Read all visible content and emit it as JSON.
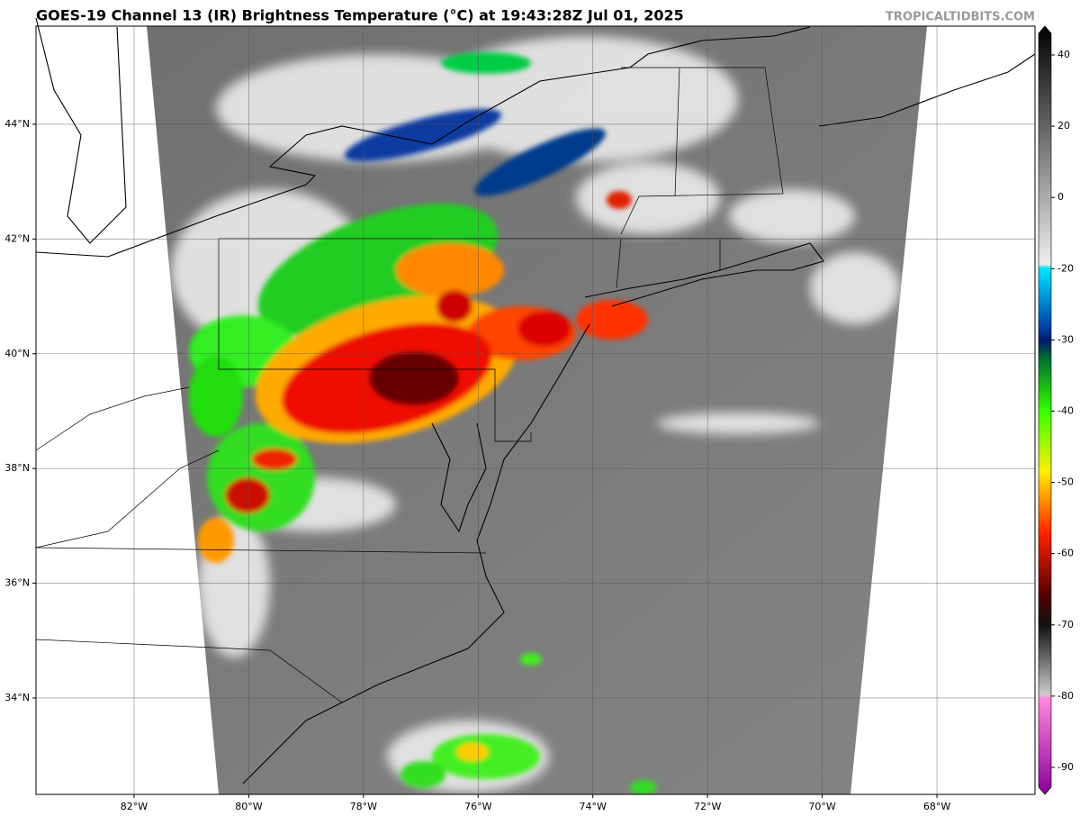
{
  "title": "GOES-19 Channel 13 (IR) Brightness Temperature (°C) at 19:43:28Z Jul 01, 2025",
  "credit": "TROPICALTIDBITS.COM",
  "map": {
    "xlim": [
      -83.71,
      -66.29
    ],
    "ylim": [
      32.32,
      45.71
    ],
    "grid": true,
    "xticks": [
      {
        "value": -82,
        "label": "82°W"
      },
      {
        "value": -80,
        "label": "80°W"
      },
      {
        "value": -78,
        "label": "78°W"
      },
      {
        "value": -76,
        "label": "76°W"
      },
      {
        "value": -74,
        "label": "74°W"
      },
      {
        "value": -72,
        "label": "72°W"
      },
      {
        "value": -70,
        "label": "70°W"
      },
      {
        "value": -68,
        "label": "68°W"
      }
    ],
    "yticks": [
      {
        "value": 44,
        "label": "44°N"
      },
      {
        "value": 42,
        "label": "42°N"
      },
      {
        "value": 40,
        "label": "40°N"
      },
      {
        "value": 38,
        "label": "38°N"
      },
      {
        "value": 36,
        "label": "36°N"
      },
      {
        "value": 34,
        "label": "34°N"
      }
    ]
  },
  "colorbar": {
    "ticks": [
      40,
      20,
      0,
      -20,
      -30,
      -40,
      -50,
      -60,
      -70,
      -80,
      -90
    ]
  }
}
